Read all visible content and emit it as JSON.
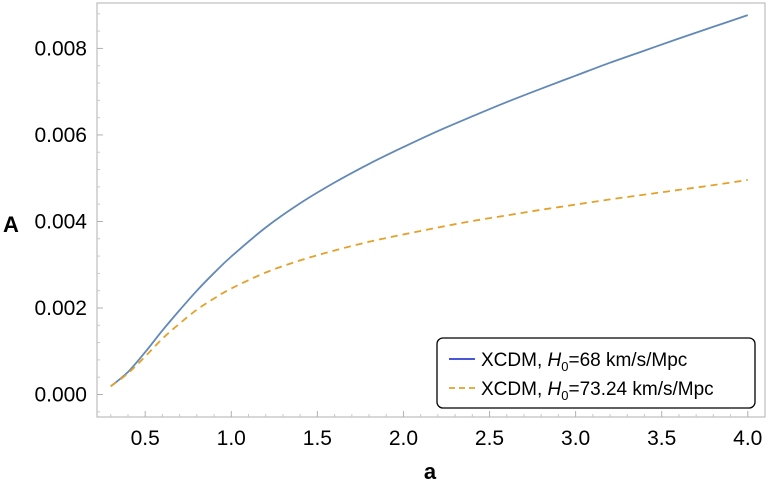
{
  "chart_data": {
    "type": "line",
    "title": "",
    "xlabel": "a",
    "ylabel": "A",
    "xlim": [
      0.22,
      4.1
    ],
    "ylim": [
      -0.00052,
      0.00905
    ],
    "x_ticks": [
      0.5,
      1.0,
      1.5,
      2.0,
      2.5,
      3.0,
      3.5,
      4.0
    ],
    "x_tick_labels": [
      "0.5",
      "1.0",
      "1.5",
      "2.0",
      "2.5",
      "3.0",
      "3.5",
      "4.0"
    ],
    "y_ticks": [
      0.0,
      0.002,
      0.004,
      0.006,
      0.008
    ],
    "y_tick_labels": [
      "0.000",
      "0.002",
      "0.004",
      "0.006",
      "0.008"
    ],
    "grid": false,
    "legend_position": "bottom-right",
    "series": [
      {
        "name": "XCDM, H0=68 km/s/Mpc",
        "legend_prefix": "XCDM, ",
        "legend_h": "H",
        "legend_sub": "0",
        "legend_suffix": "=68 km/s/Mpc",
        "color": "#6289b8",
        "legend_color": "#2e3fcf",
        "style": "solid",
        "x": [
          0.3,
          0.4,
          0.5,
          0.6,
          0.7,
          0.8,
          0.9,
          1.0,
          1.2,
          1.4,
          1.6,
          1.8,
          2.0,
          2.2,
          2.4,
          2.6,
          2.8,
          3.0,
          3.2,
          3.4,
          3.6,
          3.8,
          4.0
        ],
        "y": [
          0.00019,
          0.00052,
          0.00098,
          0.00148,
          0.00195,
          0.0024,
          0.00281,
          0.00319,
          0.00386,
          0.00442,
          0.0049,
          0.00533,
          0.00572,
          0.00609,
          0.00643,
          0.00676,
          0.00707,
          0.00737,
          0.00767,
          0.00795,
          0.00823,
          0.0085,
          0.00877
        ]
      },
      {
        "name": "XCDM, H0=73.24 km/s/Mpc",
        "legend_prefix": "XCDM, ",
        "legend_h": "H",
        "legend_sub": "0",
        "legend_suffix": "=73.24 km/s/Mpc",
        "color": "#e4a12a",
        "legend_color": "#e4a12a",
        "style": "dashed",
        "x": [
          0.3,
          0.4,
          0.5,
          0.6,
          0.7,
          0.8,
          0.9,
          1.0,
          1.2,
          1.4,
          1.6,
          1.8,
          2.0,
          2.2,
          2.4,
          2.6,
          2.8,
          3.0,
          3.2,
          3.4,
          3.6,
          3.8,
          4.0
        ],
        "y": [
          0.00019,
          0.00049,
          0.00088,
          0.00129,
          0.00164,
          0.00196,
          0.00222,
          0.00245,
          0.00282,
          0.0031,
          0.00333,
          0.00353,
          0.0037,
          0.00386,
          0.00401,
          0.00414,
          0.00427,
          0.00439,
          0.00451,
          0.00462,
          0.00473,
          0.00484,
          0.00496
        ]
      }
    ]
  }
}
